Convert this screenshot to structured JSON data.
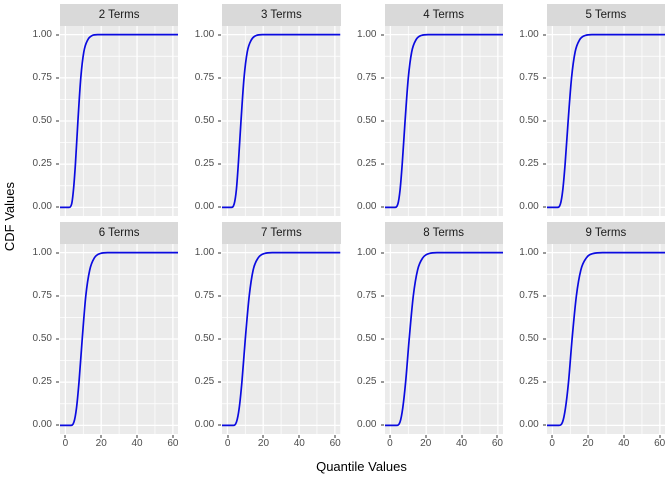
{
  "chart_data": {
    "type": "line",
    "title": "",
    "xlabel": "Quantile Values",
    "ylabel": "CDF Values",
    "legend": "none",
    "grid": true,
    "layout": {
      "rows": 2,
      "cols": 4
    },
    "x_range": [
      0,
      60
    ],
    "y_range": [
      0,
      1
    ],
    "x_expanded_range": [
      -3,
      63
    ],
    "y_expanded_range": [
      -0.05,
      1.05
    ],
    "x_ticks": {
      "values": [
        0,
        20,
        40,
        60
      ],
      "labels": [
        "0",
        "20",
        "40",
        "60"
      ],
      "minor": [
        10,
        30,
        50
      ]
    },
    "y_ticks": {
      "values": [
        1,
        0.75,
        0.5,
        0.25,
        0
      ],
      "labels": [
        "1.00",
        "0.75",
        "0.50",
        "0.25",
        "0.00"
      ],
      "minor": [
        0.125,
        0.375,
        0.625,
        0.875
      ]
    },
    "colors": {
      "line": "#0B0BE0",
      "panel_bg": "#EBEBEB",
      "grid": "#FFFFFF",
      "strip_bg": "#D9D9D9",
      "strip_text": "#1A1A1A",
      "tick_text": "#4D4D4D",
      "tick_mark": "#333333",
      "axis_title": "#000000",
      "figure_bg": "#FFFFFF"
    },
    "facets": [
      {
        "label": "2 Terms",
        "cdf_points": [
          [
            -3,
            0
          ],
          [
            2,
            0
          ],
          [
            3.5,
            0.02
          ],
          [
            4.5,
            0.1
          ],
          [
            5.6,
            0.25
          ],
          [
            7,
            0.5
          ],
          [
            8.6,
            0.75
          ],
          [
            10.3,
            0.9
          ],
          [
            12.5,
            0.97
          ],
          [
            15,
            0.995
          ],
          [
            18,
            1
          ],
          [
            63,
            1
          ]
        ]
      },
      {
        "label": "3 Terms",
        "cdf_points": [
          [
            -3,
            0
          ],
          [
            2.2,
            0
          ],
          [
            3.8,
            0.02
          ],
          [
            5,
            0.1
          ],
          [
            6.1,
            0.25
          ],
          [
            7.6,
            0.5
          ],
          [
            9.3,
            0.75
          ],
          [
            11.1,
            0.9
          ],
          [
            13.4,
            0.97
          ],
          [
            16.1,
            0.995
          ],
          [
            19.5,
            1
          ],
          [
            63,
            1
          ]
        ]
      },
      {
        "label": "4 Terms",
        "cdf_points": [
          [
            -3,
            0
          ],
          [
            2.5,
            0
          ],
          [
            4.2,
            0.02
          ],
          [
            5.4,
            0.1
          ],
          [
            6.6,
            0.25
          ],
          [
            8.2,
            0.5
          ],
          [
            10,
            0.75
          ],
          [
            11.9,
            0.9
          ],
          [
            14.3,
            0.97
          ],
          [
            17.2,
            0.995
          ],
          [
            21,
            1
          ],
          [
            63,
            1
          ]
        ]
      },
      {
        "label": "5 Terms",
        "cdf_points": [
          [
            -3,
            0
          ],
          [
            2.8,
            0
          ],
          [
            4.5,
            0.02
          ],
          [
            5.8,
            0.1
          ],
          [
            7.1,
            0.25
          ],
          [
            8.8,
            0.5
          ],
          [
            10.7,
            0.75
          ],
          [
            12.7,
            0.9
          ],
          [
            15.2,
            0.97
          ],
          [
            18.3,
            0.995
          ],
          [
            22,
            1
          ],
          [
            63,
            1
          ]
        ]
      },
      {
        "label": "6 Terms",
        "cdf_points": [
          [
            -3,
            0
          ],
          [
            3,
            0
          ],
          [
            4.8,
            0.02
          ],
          [
            6.2,
            0.1
          ],
          [
            7.6,
            0.25
          ],
          [
            9.4,
            0.5
          ],
          [
            11.4,
            0.75
          ],
          [
            13.6,
            0.9
          ],
          [
            16.2,
            0.97
          ],
          [
            19.5,
            0.995
          ],
          [
            23.5,
            1
          ],
          [
            63,
            1
          ]
        ]
      },
      {
        "label": "7 Terms",
        "cdf_points": [
          [
            -3,
            0
          ],
          [
            3.2,
            0
          ],
          [
            5.1,
            0.02
          ],
          [
            6.6,
            0.1
          ],
          [
            8.1,
            0.25
          ],
          [
            10,
            0.5
          ],
          [
            12.2,
            0.75
          ],
          [
            14.4,
            0.9
          ],
          [
            17.2,
            0.97
          ],
          [
            20.7,
            0.995
          ],
          [
            25,
            1
          ],
          [
            63,
            1
          ]
        ]
      },
      {
        "label": "8 Terms",
        "cdf_points": [
          [
            -3,
            0
          ],
          [
            3.4,
            0
          ],
          [
            5.4,
            0.02
          ],
          [
            6.9,
            0.1
          ],
          [
            8.5,
            0.25
          ],
          [
            10.5,
            0.5
          ],
          [
            12.8,
            0.75
          ],
          [
            15.2,
            0.9
          ],
          [
            18.1,
            0.97
          ],
          [
            21.7,
            0.995
          ],
          [
            26,
            1
          ],
          [
            63,
            1
          ]
        ]
      },
      {
        "label": "9 Terms",
        "cdf_points": [
          [
            -3,
            0
          ],
          [
            3.6,
            0
          ],
          [
            5.7,
            0.02
          ],
          [
            7.3,
            0.1
          ],
          [
            9,
            0.25
          ],
          [
            11,
            0.5
          ],
          [
            13.4,
            0.75
          ],
          [
            15.9,
            0.9
          ],
          [
            19,
            0.97
          ],
          [
            22.8,
            0.995
          ],
          [
            28,
            1
          ],
          [
            63,
            1
          ]
        ]
      }
    ]
  }
}
